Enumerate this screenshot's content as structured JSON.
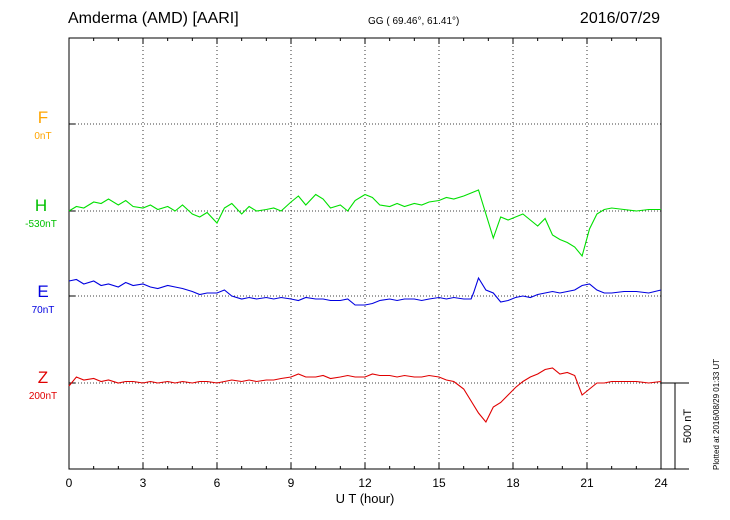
{
  "header": {
    "station": "Amderma (AMD)  [AARI]",
    "coords": "GG ( 69.46°,  61.41°)",
    "date": "2016/07/29",
    "plotted": "Plotted at 2016/08/29 01:33 UT"
  },
  "chart_data": {
    "type": "line",
    "xlabel": "U T (hour)",
    "xlim": [
      0,
      24
    ],
    "xticks": [
      "0",
      "3",
      "6",
      "9",
      "12",
      "15",
      "18",
      "21",
      "24"
    ],
    "scale_bar_label": "500 nT",
    "grid": true,
    "series": [
      {
        "name": "F",
        "offset": "0nT",
        "color": "#ffa500",
        "values": []
      },
      {
        "name": "H",
        "offset": "-530nT",
        "color": "#00e000",
        "x": [
          0,
          0.3,
          0.6,
          1,
          1.3,
          1.6,
          2,
          2.3,
          2.6,
          3,
          3.3,
          3.6,
          4,
          4.3,
          4.6,
          5,
          5.3,
          5.6,
          6,
          6.3,
          6.6,
          7,
          7.3,
          7.6,
          8,
          8.3,
          8.6,
          9,
          9.3,
          9.6,
          10,
          10.3,
          10.6,
          11,
          11.3,
          11.6,
          12,
          12.3,
          12.6,
          13,
          13.3,
          13.6,
          14,
          14.3,
          14.6,
          15,
          15.3,
          15.6,
          16,
          16.3,
          16.6,
          16.9,
          17.2,
          17.5,
          17.8,
          18.1,
          18.4,
          18.7,
          19,
          19.3,
          19.6,
          19.9,
          20.2,
          20.5,
          20.8,
          21.1,
          21.4,
          21.7,
          22,
          22.5,
          23,
          23.5,
          24
        ],
        "values": [
          0,
          30,
          20,
          60,
          50,
          80,
          40,
          70,
          30,
          20,
          40,
          10,
          30,
          0,
          40,
          -20,
          -40,
          -10,
          -80,
          20,
          50,
          -20,
          30,
          0,
          10,
          20,
          0,
          60,
          100,
          40,
          110,
          80,
          20,
          40,
          0,
          70,
          110,
          90,
          40,
          30,
          50,
          30,
          50,
          40,
          60,
          70,
          90,
          80,
          100,
          120,
          140,
          -20,
          -180,
          -40,
          -60,
          -40,
          -20,
          -60,
          -100,
          -50,
          -160,
          -190,
          -210,
          -240,
          -300,
          -120,
          -20,
          10,
          20,
          10,
          0,
          10,
          10
        ]
      },
      {
        "name": "E",
        "offset": "70nT",
        "color": "#0000e0",
        "x": [
          0,
          0.3,
          0.6,
          1,
          1.3,
          1.6,
          2,
          2.3,
          2.6,
          3,
          3.3,
          3.6,
          4,
          4.3,
          4.6,
          5,
          5.3,
          5.6,
          6,
          6.3,
          6.6,
          7,
          7.3,
          7.6,
          8,
          8.3,
          8.6,
          9,
          9.3,
          9.6,
          10,
          10.3,
          10.6,
          11,
          11.3,
          11.6,
          12,
          12.3,
          12.6,
          13,
          13.3,
          13.6,
          14,
          14.3,
          14.6,
          15,
          15.3,
          15.6,
          16,
          16.3,
          16.4,
          16.6,
          16.9,
          17.2,
          17.5,
          17.8,
          18.1,
          18.4,
          18.7,
          19,
          19.3,
          19.6,
          19.9,
          20.2,
          20.5,
          20.8,
          21.1,
          21.4,
          21.7,
          22,
          22.5,
          23,
          23.5,
          24
        ],
        "values": [
          100,
          110,
          80,
          100,
          70,
          80,
          60,
          90,
          70,
          80,
          60,
          50,
          70,
          60,
          50,
          30,
          10,
          20,
          20,
          40,
          0,
          -20,
          -10,
          -20,
          -10,
          -20,
          -10,
          -20,
          -30,
          -10,
          -20,
          -20,
          -30,
          -30,
          -20,
          -60,
          -60,
          -50,
          -30,
          -20,
          -30,
          -20,
          -20,
          -30,
          -20,
          -10,
          -20,
          -10,
          -20,
          -20,
          20,
          120,
          40,
          20,
          -40,
          -30,
          -10,
          0,
          -10,
          10,
          20,
          30,
          20,
          30,
          40,
          70,
          80,
          40,
          20,
          20,
          30,
          30,
          20,
          40
        ]
      },
      {
        "name": "Z",
        "offset": "200nT",
        "color": "#e00000",
        "x": [
          0,
          0.3,
          0.6,
          1,
          1.3,
          1.6,
          2,
          2.3,
          2.6,
          3,
          3.3,
          3.6,
          4,
          4.3,
          4.6,
          5,
          5.3,
          5.6,
          6,
          6.3,
          6.6,
          7,
          7.3,
          7.6,
          8,
          8.3,
          8.6,
          9,
          9.3,
          9.6,
          10,
          10.3,
          10.6,
          11,
          11.3,
          11.6,
          12,
          12.3,
          12.6,
          13,
          13.3,
          13.6,
          14,
          14.3,
          14.6,
          15,
          15.3,
          15.6,
          16,
          16.3,
          16.6,
          16.9,
          17.2,
          17.5,
          17.8,
          18.1,
          18.4,
          18.7,
          19,
          19.3,
          19.6,
          19.9,
          20.2,
          20.5,
          20.8,
          21.1,
          21.4,
          21.7,
          22,
          22.5,
          23,
          23.5,
          24
        ],
        "values": [
          -20,
          40,
          20,
          30,
          10,
          20,
          0,
          10,
          10,
          0,
          10,
          0,
          10,
          0,
          10,
          0,
          10,
          10,
          0,
          10,
          20,
          10,
          20,
          10,
          20,
          20,
          30,
          40,
          60,
          40,
          40,
          50,
          30,
          40,
          50,
          40,
          40,
          60,
          50,
          50,
          40,
          50,
          40,
          40,
          50,
          40,
          20,
          10,
          -40,
          -120,
          -200,
          -260,
          -160,
          -130,
          -80,
          -30,
          10,
          40,
          60,
          90,
          100,
          60,
          70,
          50,
          -80,
          -40,
          0,
          0,
          10,
          10,
          10,
          0,
          10
        ]
      }
    ]
  }
}
